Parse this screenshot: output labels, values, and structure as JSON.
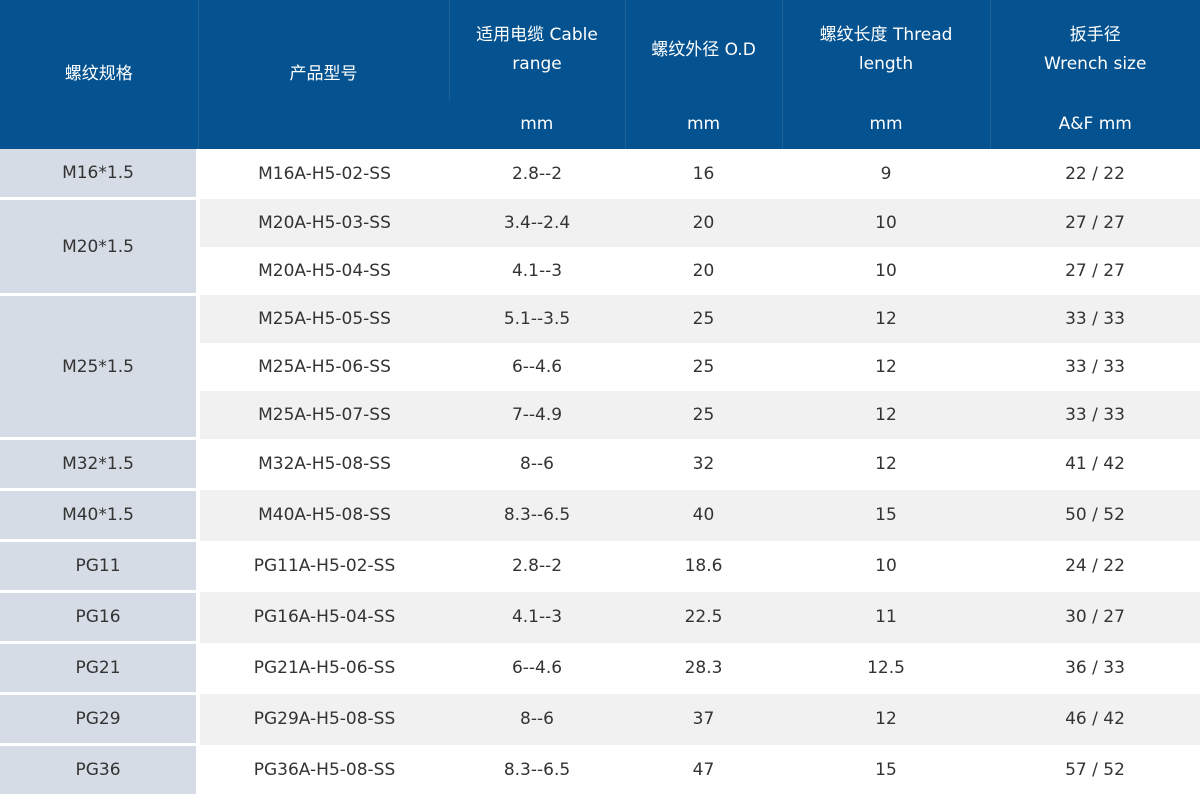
{
  "table": {
    "header": {
      "thread_spec": "螺纹规格",
      "product_model": "产品型号",
      "cable_range": {
        "line1": "适用电缆 Cable",
        "line2": "range",
        "unit": "mm"
      },
      "thread_od": {
        "label": "螺纹外径 O.D",
        "unit": "mm"
      },
      "thread_length": {
        "line1": "螺纹长度 Thread",
        "line2": "length",
        "unit": "mm"
      },
      "wrench_size": {
        "line1": "扳手径",
        "line2": "Wrench size",
        "unit": "A&F mm"
      }
    },
    "rows": [
      {
        "spec": "M16*1.5",
        "model": "M16A-H5-02-SS",
        "cable": "2.8--2",
        "od": "16",
        "length": "9",
        "wrench": "22 / 22"
      },
      {
        "spec": "M20*1.5",
        "model": "M20A-H5-03-SS",
        "cable": "3.4--2.4",
        "od": "20",
        "length": "10",
        "wrench": "27 / 27"
      },
      {
        "spec": "",
        "model": "M20A-H5-04-SS",
        "cable": "4.1--3",
        "od": "20",
        "length": "10",
        "wrench": "27 / 27"
      },
      {
        "spec": "M25*1.5",
        "model": "M25A-H5-05-SS",
        "cable": "5.1--3.5",
        "od": "25",
        "length": "12",
        "wrench": "33 / 33"
      },
      {
        "spec": "",
        "model": "M25A-H5-06-SS",
        "cable": "6--4.6",
        "od": "25",
        "length": "12",
        "wrench": "33 / 33"
      },
      {
        "spec": "",
        "model": "M25A-H5-07-SS",
        "cable": "7--4.9",
        "od": "25",
        "length": "12",
        "wrench": "33 / 33"
      },
      {
        "spec": "M32*1.5",
        "model": "M32A-H5-08-SS",
        "cable": "8--6",
        "od": "32",
        "length": "12",
        "wrench": "41 / 42"
      },
      {
        "spec": "M40*1.5",
        "model": "M40A-H5-08-SS",
        "cable": "8.3--6.5",
        "od": "40",
        "length": "15",
        "wrench": "50 / 52"
      },
      {
        "spec": "PG11",
        "model": "PG11A-H5-02-SS",
        "cable": "2.8--2",
        "od": "18.6",
        "length": "10",
        "wrench": "24 / 22"
      },
      {
        "spec": "PG16",
        "model": "PG16A-H5-04-SS",
        "cable": "4.1--3",
        "od": "22.5",
        "length": "11",
        "wrench": "30 / 27"
      },
      {
        "spec": "PG21",
        "model": "PG21A-H5-06-SS",
        "cable": "6--4.6",
        "od": "28.3",
        "length": "12.5",
        "wrench": "36 / 33"
      },
      {
        "spec": "PG29",
        "model": "PG29A-H5-08-SS",
        "cable": "8--6",
        "od": "37",
        "length": "12",
        "wrench": "46 / 42"
      },
      {
        "spec": "PG36",
        "model": "PG36A-H5-08-SS",
        "cable": "8.3--6.5",
        "od": "47",
        "length": "15",
        "wrench": "57 / 52"
      }
    ]
  },
  "colors": {
    "header_bg": "#04528f",
    "header_text": "#ffffff",
    "spec_cell_bg": "#d5dce5",
    "row_alt_bg": "#f1f1f1",
    "body_text": "#333333"
  }
}
